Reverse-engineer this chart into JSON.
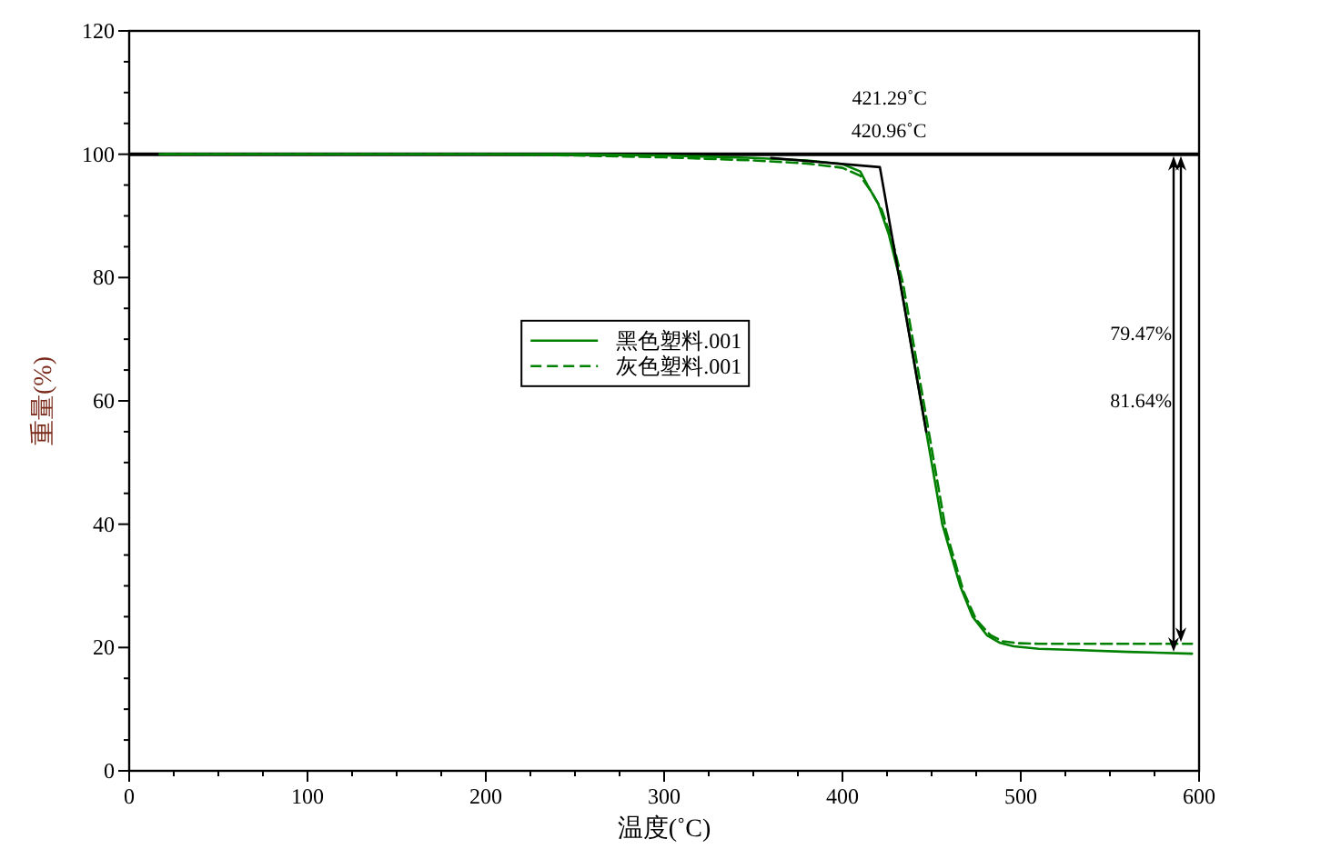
{
  "chart_data": {
    "type": "line",
    "xlabel": "温度(˚C)",
    "ylabel": "重量(%)",
    "xlim": [
      0,
      600
    ],
    "ylim": [
      0,
      120
    ],
    "xticks": [
      0,
      {
        "value": 25,
        "label": null
      },
      {
        "value": 50,
        "label": null
      },
      {
        "value": 75,
        "label": null
      },
      100,
      {
        "value": 125,
        "label": null
      },
      {
        "value": 150,
        "label": null
      },
      {
        "value": 175,
        "label": null
      },
      200,
      {
        "value": 225,
        "label": null
      },
      {
        "value": 250,
        "label": null
      },
      {
        "value": 275,
        "label": null
      },
      300,
      {
        "value": 325,
        "label": null
      },
      {
        "value": 350,
        "label": null
      },
      {
        "value": 375,
        "label": null
      },
      400,
      {
        "value": 425,
        "label": null
      },
      {
        "value": 450,
        "label": null
      },
      {
        "value": 475,
        "label": null
      },
      500,
      {
        "value": 525,
        "label": null
      },
      {
        "value": 550,
        "label": null
      },
      {
        "value": 575,
        "label": null
      },
      600
    ],
    "yticks": [
      0,
      {
        "value": 5,
        "label": null
      },
      {
        "value": 10,
        "label": null
      },
      {
        "value": 15,
        "label": null
      },
      20,
      {
        "value": 25,
        "label": null
      },
      {
        "value": 30,
        "label": null
      },
      {
        "value": 35,
        "label": null
      },
      40,
      {
        "value": 45,
        "label": null
      },
      {
        "value": 50,
        "label": null
      },
      {
        "value": 55,
        "label": null
      },
      60,
      {
        "value": 65,
        "label": null
      },
      {
        "value": 70,
        "label": null
      },
      {
        "value": 75,
        "label": null
      },
      80,
      {
        "value": 85,
        "label": null
      },
      {
        "value": 90,
        "label": null
      },
      {
        "value": 95,
        "label": null
      },
      100,
      {
        "value": 105,
        "label": null
      },
      {
        "value": 110,
        "label": null
      },
      {
        "value": 115,
        "label": null
      },
      120
    ],
    "grid": false,
    "legend": "center",
    "marker": "none",
    "series": [
      {
        "name": "黑色塑料.001",
        "color": "#008000",
        "line_style": "solid",
        "x": [
          17,
          50,
          100,
          150,
          200,
          250,
          300,
          350,
          380,
          400,
          410,
          414,
          420,
          426,
          432,
          438,
          444,
          450,
          456,
          461,
          466,
          473,
          481,
          488,
          496,
          510,
          530,
          560,
          596
        ],
        "values": [
          100,
          100,
          100,
          100,
          100,
          100,
          99.8,
          99.4,
          99,
          98.4,
          97.2,
          95,
          92,
          87,
          80,
          70,
          60,
          50,
          40,
          35,
          30,
          25,
          22,
          20.8,
          20.2,
          19.8,
          19.6,
          19.3,
          19
        ]
      },
      {
        "name": "灰色塑料.001",
        "color": "#008000",
        "line_style": "dashed",
        "x": [
          17,
          50,
          100,
          150,
          200,
          250,
          300,
          350,
          380,
          400,
          410,
          416,
          422,
          428,
          434,
          440,
          446,
          452,
          458,
          463,
          468,
          475,
          483,
          490,
          498,
          510,
          530,
          560,
          596
        ],
        "values": [
          100,
          100,
          100,
          100,
          100,
          99.8,
          99.5,
          99,
          98.5,
          97.8,
          96.5,
          94,
          91,
          86,
          79,
          69,
          59,
          49,
          39,
          34,
          29,
          24.5,
          22,
          21,
          20.7,
          20.6,
          20.6,
          20.6,
          20.6
        ]
      },
      {
        "color": "#000000",
        "line_style": "solid",
        "x": [
          360,
          421,
          447
        ],
        "values": [
          99.4,
          97.9,
          55
        ]
      }
    ],
    "ref_lines": [
      {
        "axis": "y",
        "value": 100,
        "color": "#000000"
      }
    ],
    "annotations": [
      {
        "text": "421.29˚C",
        "x": 421.29,
        "y": 98
      },
      {
        "text": "420.96˚C",
        "x": 420.96,
        "y": 98
      },
      "79.47%",
      "81.64%"
    ]
  }
}
